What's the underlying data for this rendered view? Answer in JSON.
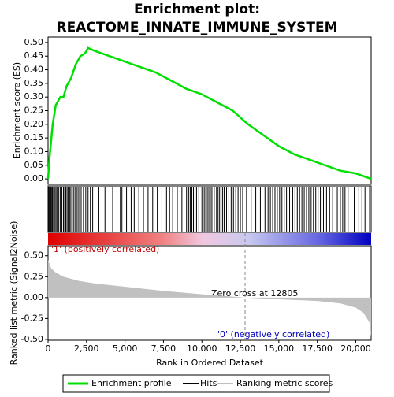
{
  "chart_data": [
    {
      "type": "line",
      "title": "Enrichment plot:",
      "subtitle": "REACTOME_INNATE_IMMUNE_SYSTEM",
      "ylabel": "Enrichment score (ES)",
      "xlim": [
        0,
        21000
      ],
      "ylim": [
        -0.02,
        0.52
      ],
      "yticks": [
        {
          "value": 0,
          "label": "0.00"
        },
        {
          "value": 0.05,
          "label": "0.05"
        },
        {
          "value": 0.1,
          "label": "0.10"
        },
        {
          "value": 0.15,
          "label": "0.15"
        },
        {
          "value": 0.2,
          "label": "0.20"
        },
        {
          "value": 0.25,
          "label": "0.25"
        },
        {
          "value": 0.3,
          "label": "0.30"
        },
        {
          "value": 0.35,
          "label": "0.35"
        },
        {
          "value": 0.4,
          "label": "0.40"
        },
        {
          "value": 0.45,
          "label": "0.45"
        },
        {
          "value": 0.5,
          "label": "0.50"
        }
      ],
      "x": [
        0,
        100,
        300,
        500,
        800,
        1000,
        1200,
        1500,
        1800,
        2100,
        2400,
        2600,
        3000,
        3500,
        4000,
        4500,
        5000,
        5500,
        6000,
        7000,
        8000,
        9000,
        10000,
        11000,
        12000,
        13000,
        14000,
        15000,
        16000,
        17000,
        18000,
        19000,
        20000,
        20500,
        21000
      ],
      "series": [
        {
          "name": "Enrichment profile",
          "color": "#00e000",
          "values": [
            0,
            0.08,
            0.2,
            0.27,
            0.3,
            0.3,
            0.34,
            0.37,
            0.42,
            0.45,
            0.46,
            0.48,
            0.47,
            0.46,
            0.45,
            0.44,
            0.43,
            0.42,
            0.41,
            0.39,
            0.36,
            0.33,
            0.31,
            0.28,
            0.25,
            0.2,
            0.16,
            0.12,
            0.09,
            0.07,
            0.05,
            0.03,
            0.02,
            0.01,
            0
          ]
        }
      ],
      "hits": {
        "name": "Hits",
        "color": "#000000",
        "x": [
          20,
          60,
          110,
          150,
          200,
          260,
          310,
          380,
          450,
          520,
          600,
          700,
          800,
          900,
          1000,
          1080,
          1150,
          1230,
          1300,
          1400,
          1480,
          1560,
          1650,
          1750,
          1850,
          1950,
          2050,
          2150,
          2300,
          2450,
          2600,
          2750,
          2900,
          3300,
          3700,
          4200,
          4700,
          4800,
          5100,
          5400,
          5600,
          5900,
          6200,
          6500,
          6800,
          7100,
          7400,
          7700,
          7900,
          8100,
          8400,
          8700,
          9000,
          9150,
          9250,
          9350,
          9450,
          9550,
          9650,
          9800,
          10000,
          10150,
          10250,
          10350,
          10450,
          10550,
          10650,
          10800,
          10950,
          11050,
          11150,
          11250,
          11350,
          11450,
          11600,
          11750,
          11900,
          12050,
          12200,
          12350,
          12500,
          12650,
          12900,
          13200,
          13500,
          13800,
          14100,
          14300,
          14450,
          14600,
          14750,
          14900,
          15050,
          15200,
          15350,
          15500,
          15700,
          15900,
          16050,
          16200,
          16350,
          16500,
          16650,
          16800,
          16950,
          17100,
          17250,
          17400,
          17550,
          17700,
          17900,
          18100,
          18300,
          18500,
          18800,
          19000,
          19150,
          19300,
          19500,
          19900,
          20200,
          20400,
          20600,
          20900
        ]
      }
    },
    {
      "type": "area",
      "ylabel": "Ranked list metric (Signal2Noise)",
      "xlabel": "Rank in Ordered Dataset",
      "xlim": [
        0,
        21000
      ],
      "ylim": [
        -0.51,
        0.62
      ],
      "xticks": [
        0,
        {
          "value": 2500,
          "label": "2,500"
        },
        {
          "value": 5000,
          "label": "5,000"
        },
        {
          "value": 7500,
          "label": "7,500"
        },
        {
          "value": 10000,
          "label": "10,000"
        },
        {
          "value": 12500,
          "label": "12,500"
        },
        {
          "value": 15000,
          "label": "15,000"
        },
        {
          "value": 17500,
          "label": "17,500"
        },
        {
          "value": 20000,
          "label": "20,000"
        }
      ],
      "yticks": [
        {
          "value": -0.5,
          "label": "-0.50"
        },
        {
          "value": -0.25,
          "label": "-0.25"
        },
        {
          "value": 0,
          "label": "0.00"
        },
        {
          "value": 0.25,
          "label": "0.25"
        },
        {
          "value": 0.5,
          "label": "0.50"
        }
      ],
      "x": [
        0,
        200,
        500,
        1000,
        2000,
        3000,
        5000,
        7500,
        10000,
        12805,
        15000,
        17500,
        19000,
        20000,
        20500,
        20900,
        21000
      ],
      "series": [
        {
          "name": "Ranking metric scores",
          "color": "#c0c0c0",
          "values": [
            0.45,
            0.35,
            0.3,
            0.25,
            0.2,
            0.17,
            0.13,
            0.08,
            0.04,
            0,
            -0.02,
            -0.04,
            -0.07,
            -0.12,
            -0.18,
            -0.3,
            -0.47
          ]
        }
      ],
      "zero_cross": 12805,
      "zero_cross_label": "Zero cross at 12805",
      "pos_label": "'1' (positively correlated)",
      "neg_label": "'0' (negatively correlated)"
    }
  ]
}
